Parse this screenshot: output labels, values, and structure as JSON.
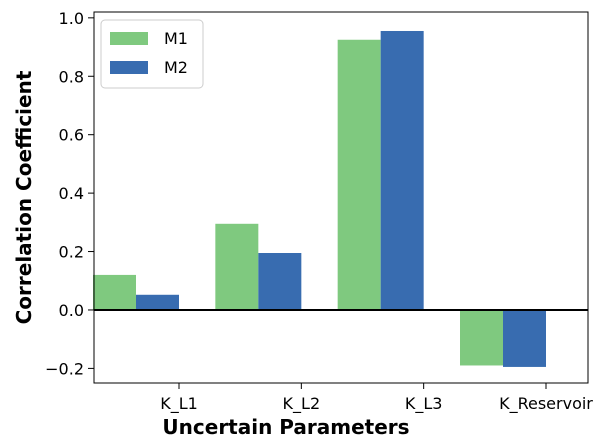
{
  "chart_data": {
    "type": "bar",
    "title": "",
    "xlabel": "Uncertain Parameters",
    "ylabel": "Correlation Coefficient",
    "categories": [
      "K_L1",
      "K_L2",
      "K_L3",
      "K_Reservoir"
    ],
    "series": [
      {
        "name": "M1",
        "color": "#7fc97f",
        "values": [
          0.12,
          0.295,
          0.925,
          -0.19
        ]
      },
      {
        "name": "M2",
        "color": "#386cb0",
        "values": [
          0.052,
          0.195,
          0.955,
          -0.195
        ]
      }
    ],
    "ylim": [
      -0.25,
      1.02
    ],
    "yticks": [
      -0.2,
      0.0,
      0.2,
      0.4,
      0.6,
      0.8,
      1.0
    ],
    "ytick_labels": [
      "−0.2",
      "0.0",
      "0.2",
      "0.4",
      "0.6",
      "0.8",
      "1.0"
    ],
    "zero_line": true,
    "grid": false,
    "legend_position": "top-left"
  }
}
